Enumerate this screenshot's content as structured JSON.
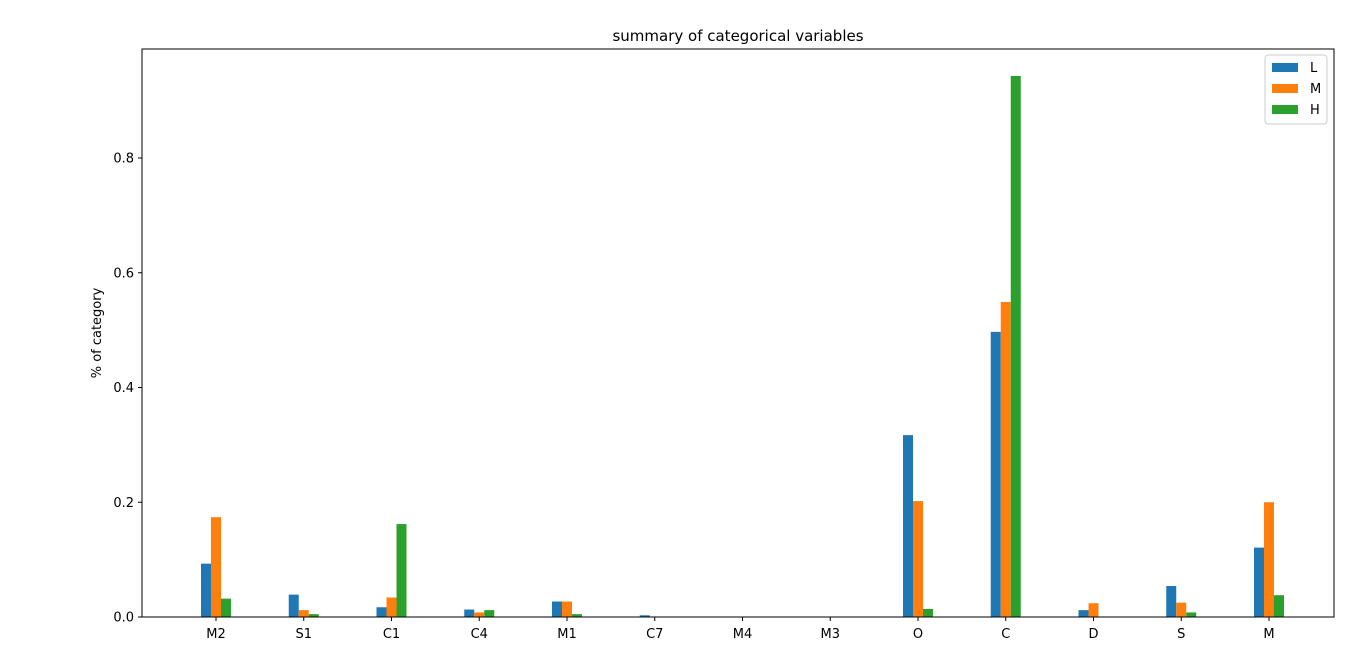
{
  "chart_data": {
    "type": "bar",
    "title": "summary of categorical variables",
    "xlabel": "",
    "ylabel": "% of category",
    "ylim": [
      0,
      0.99
    ],
    "yticks": [
      "0.0",
      "0.2",
      "0.4",
      "0.6",
      "0.8"
    ],
    "categories": [
      "M2",
      "S1",
      "C1",
      "C4",
      "M1",
      "C7",
      "M4",
      "M3",
      "O",
      "C",
      "D",
      "S",
      "M"
    ],
    "series": [
      {
        "name": "L",
        "color": "#1f77b4",
        "values": [
          0.093,
          0.039,
          0.017,
          0.013,
          0.027,
          0.003,
          0.0,
          0.0,
          0.317,
          0.497,
          0.012,
          0.054,
          0.121
        ]
      },
      {
        "name": "M",
        "color": "#ff7f0e",
        "values": [
          0.174,
          0.012,
          0.034,
          0.008,
          0.027,
          0.0,
          0.0,
          0.0,
          0.202,
          0.549,
          0.024,
          0.025,
          0.2
        ]
      },
      {
        "name": "H",
        "color": "#2ca02c",
        "values": [
          0.032,
          0.005,
          0.162,
          0.012,
          0.005,
          0.0,
          0.0,
          0.0,
          0.014,
          0.943,
          0.0,
          0.008,
          0.038
        ]
      }
    ],
    "legend_position": "top-right",
    "grid": false
  }
}
